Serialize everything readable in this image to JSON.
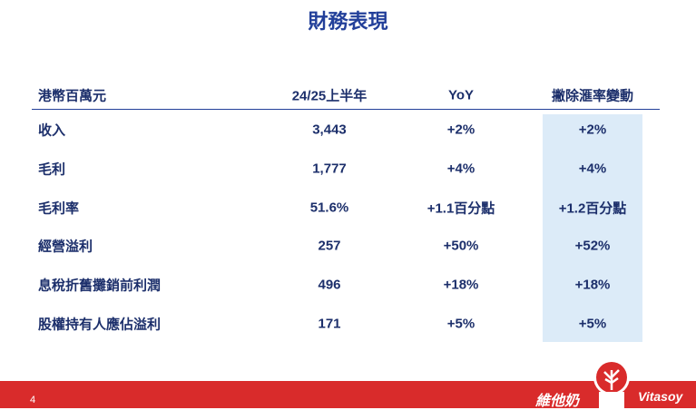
{
  "header": {
    "title": "財務表現"
  },
  "table": {
    "header": [
      "港幣百萬元",
      "24/25上半年",
      "YoY",
      "撇除滙率變動"
    ],
    "rows": [
      [
        "收入",
        "3,443",
        "+2%",
        "+2%"
      ],
      [
        "毛利",
        "1,777",
        "+4%",
        "+4%"
      ],
      [
        "毛利率",
        "51.6%",
        "+1.1百分點",
        "+1.2百分點"
      ],
      [
        "經營溢利",
        "257",
        "+50%",
        "+52%"
      ],
      [
        "息稅折舊攤銷前利潤",
        "496",
        "+18%",
        "+18%"
      ],
      [
        "股權持有人應佔溢利",
        "171",
        "+5%",
        "+5%"
      ]
    ]
  },
  "footer": {
    "page_number": "4",
    "logo_chinese": "維他奶",
    "logo_english": "Vitasoy"
  }
}
